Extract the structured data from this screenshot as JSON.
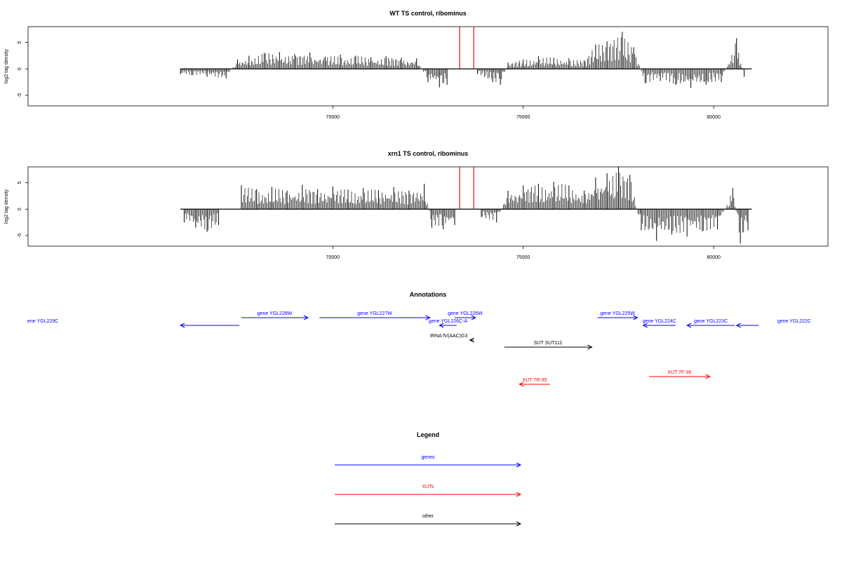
{
  "chart_data": [
    {
      "type": "bar",
      "title": "WT TS control, ribominus",
      "ylabel": "log2 tag density",
      "xlim": [
        62000,
        83000
      ],
      "ylim": [
        -7,
        8
      ],
      "x_ticks": [
        "70000",
        "75000",
        "80000"
      ],
      "x_tick_values": [
        70000,
        75000,
        80000
      ],
      "y_ticks": [
        "-5",
        "0",
        "5"
      ],
      "y_tick_values": [
        -5,
        0,
        5
      ],
      "series": [
        {
          "color": "#000000",
          "baseline": [
            66000,
            81000
          ],
          "points": [
            [
              66000,
              -1
            ],
            [
              66300,
              -1.2
            ],
            [
              66700,
              -1.5
            ],
            [
              67200,
              -1.8
            ],
            [
              67500,
              1.8
            ],
            [
              67800,
              2.5
            ],
            [
              68200,
              3
            ],
            [
              68600,
              3.2
            ],
            [
              69000,
              2.8
            ],
            [
              69400,
              3.1
            ],
            [
              69800,
              2.3
            ],
            [
              70200,
              2.7
            ],
            [
              70600,
              2.5
            ],
            [
              71000,
              2.2
            ],
            [
              71400,
              2.4
            ],
            [
              71800,
              2.1
            ],
            [
              72200,
              2
            ],
            [
              72500,
              -2.5
            ],
            [
              72800,
              -3.5
            ],
            [
              73000,
              -3
            ],
            [
              73800,
              -1
            ],
            [
              74200,
              -2.5
            ],
            [
              74400,
              -3
            ],
            [
              74600,
              1.2
            ],
            [
              75000,
              1.8
            ],
            [
              75400,
              2.4
            ],
            [
              75800,
              2.1
            ],
            [
              76200,
              2
            ],
            [
              76600,
              1.6
            ],
            [
              76900,
              4.6
            ],
            [
              77200,
              5.2
            ],
            [
              77600,
              7
            ],
            [
              77900,
              4.1
            ],
            [
              78200,
              -2.7
            ],
            [
              78600,
              -2.3
            ],
            [
              79000,
              -3
            ],
            [
              79400,
              -3.6
            ],
            [
              79800,
              -3
            ],
            [
              80200,
              -2.5
            ],
            [
              80600,
              5.8
            ],
            [
              80800,
              -1.5
            ]
          ]
        },
        {
          "color": "#cc0000",
          "points": [
            [
              73330,
              8
            ],
            [
              73700,
              8
            ]
          ]
        }
      ]
    },
    {
      "type": "bar",
      "title": "xrn1 TS control, ribominus",
      "ylabel": "log2 tag density",
      "xlim": [
        62000,
        83000
      ],
      "ylim": [
        -7,
        8
      ],
      "x_ticks": [
        "70000",
        "75000",
        "80000"
      ],
      "x_tick_values": [
        70000,
        75000,
        80000
      ],
      "y_ticks": [
        "-5",
        "0",
        "5"
      ],
      "y_tick_values": [
        -5,
        0,
        5
      ],
      "series": [
        {
          "color": "#000000",
          "baseline": [
            66000,
            81000
          ],
          "points": [
            [
              66100,
              -2.5
            ],
            [
              66400,
              -3.5
            ],
            [
              66700,
              -4.3
            ],
            [
              67000,
              -3
            ],
            [
              67600,
              4.5
            ],
            [
              68000,
              3.8
            ],
            [
              68400,
              4.2
            ],
            [
              68800,
              3.5
            ],
            [
              69200,
              4.6
            ],
            [
              69600,
              3.8
            ],
            [
              70000,
              4.3
            ],
            [
              70400,
              3.7
            ],
            [
              70800,
              4
            ],
            [
              71200,
              3.6
            ],
            [
              71600,
              4.2
            ],
            [
              72000,
              3.5
            ],
            [
              72400,
              4.8
            ],
            [
              72600,
              -3.5
            ],
            [
              72900,
              -3.8
            ],
            [
              73200,
              -3
            ],
            [
              73900,
              -1.5
            ],
            [
              74300,
              -2.5
            ],
            [
              74600,
              3.5
            ],
            [
              75000,
              4.5
            ],
            [
              75400,
              4.8
            ],
            [
              75800,
              5.2
            ],
            [
              76200,
              4.5
            ],
            [
              76600,
              3.5
            ],
            [
              76900,
              6
            ],
            [
              77200,
              6.8
            ],
            [
              77500,
              8
            ],
            [
              77800,
              6.5
            ],
            [
              78100,
              -4
            ],
            [
              78500,
              -6
            ],
            [
              78900,
              -4.8
            ],
            [
              79300,
              -5.2
            ],
            [
              79700,
              -4.2
            ],
            [
              80100,
              -3.8
            ],
            [
              80500,
              4
            ],
            [
              80700,
              -6.5
            ],
            [
              80900,
              -4
            ]
          ]
        },
        {
          "color": "#cc0000",
          "points": [
            [
              73330,
              8
            ],
            [
              73700,
              8
            ]
          ]
        }
      ]
    }
  ],
  "annotations": {
    "title": "Annotations",
    "items": [
      {
        "label": "ene YGL229C",
        "color": "#0000ff",
        "x1": 66000,
        "x2": 67550,
        "dir": "left",
        "row": 1
      },
      {
        "label": "gene YGL228W",
        "color": "#0000ff",
        "x1": 67600,
        "x2": 69350,
        "dir": "right",
        "row": 0
      },
      {
        "label": "gene YGL227W",
        "color": "#0000ff",
        "x1": 69650,
        "x2": 72550,
        "dir": "right",
        "row": 0
      },
      {
        "label": "gene YGL226C-A",
        "color": "#0000ff",
        "x1": 72800,
        "x2": 73250,
        "dir": "left",
        "row": 1
      },
      {
        "label": "gene YGL226W",
        "color": "#0000ff",
        "x1": 73200,
        "x2": 73750,
        "dir": "right",
        "row": 0
      },
      {
        "label": "gene YGL225W",
        "color": "#0000ff",
        "x1": 76950,
        "x2": 78000,
        "dir": "right",
        "row": 0
      },
      {
        "label": "gene YGL224C",
        "color": "#0000ff",
        "x1": 78150,
        "x2": 79000,
        "dir": "left",
        "row": 1
      },
      {
        "label": "gene YGL223C",
        "color": "#0000ff",
        "x1": 79300,
        "x2": 80550,
        "dir": "left",
        "row": 1
      },
      {
        "label": "gene YGL222C",
        "color": "#0000ff",
        "x1": 80600,
        "x2": 81180,
        "dir": "left",
        "row": 1
      },
      {
        "label": "tRNA fV(AAC)G3",
        "color": "#000000",
        "x1": 73600,
        "x2": 73700,
        "dir": "left",
        "row": 2
      },
      {
        "label": "SUT SUT111",
        "color": "#000000",
        "x1": 74500,
        "x2": 76800,
        "dir": "right",
        "row": 3
      },
      {
        "label": "XUT 7R-35",
        "color": "#ff0000",
        "x1": 74900,
        "x2": 75700,
        "dir": "left",
        "row": 5
      },
      {
        "label": "XUT 7F-36",
        "color": "#ff0000",
        "x1": 78300,
        "x2": 79900,
        "dir": "right",
        "row": 4
      }
    ]
  },
  "legend": {
    "title": "Legend",
    "items": [
      {
        "label": "genes",
        "color": "#0000ff"
      },
      {
        "label": "XUTs",
        "color": "#ff0000"
      },
      {
        "label": "other",
        "color": "#000000"
      }
    ]
  }
}
